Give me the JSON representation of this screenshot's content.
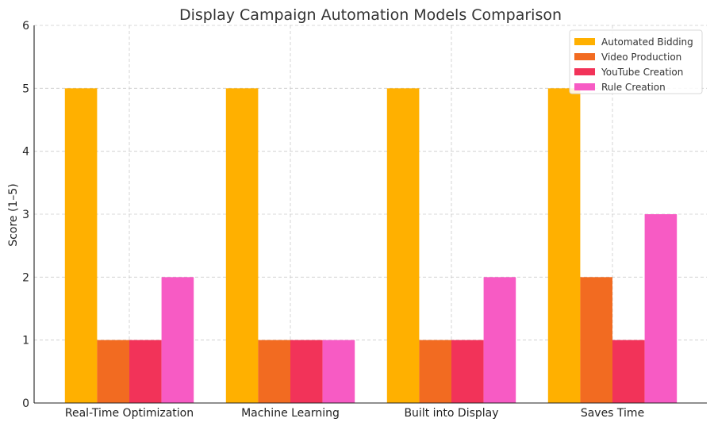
{
  "chart_data": {
    "type": "bar",
    "title": "Display Campaign Automation Models Comparison",
    "xlabel": "",
    "ylabel": "Score (1–5)",
    "ylim": [
      0,
      6
    ],
    "yticks": [
      0,
      1,
      2,
      3,
      4,
      5,
      6
    ],
    "grid": true,
    "legend_position": "top-right",
    "categories": [
      "Real-Time Optimization",
      "Machine Learning",
      "Built into Display",
      "Saves Time"
    ],
    "series": [
      {
        "name": "Automated Bidding",
        "color": "#ffb000",
        "values": [
          5,
          5,
          5,
          5
        ]
      },
      {
        "name": "Video Production",
        "color": "#f26b21",
        "values": [
          1,
          1,
          1,
          2
        ]
      },
      {
        "name": "YouTube Creation",
        "color": "#f23359",
        "values": [
          1,
          1,
          1,
          1
        ]
      },
      {
        "name": "Rule Creation",
        "color": "#f75bc4",
        "values": [
          2,
          1,
          2,
          3
        ]
      }
    ]
  }
}
